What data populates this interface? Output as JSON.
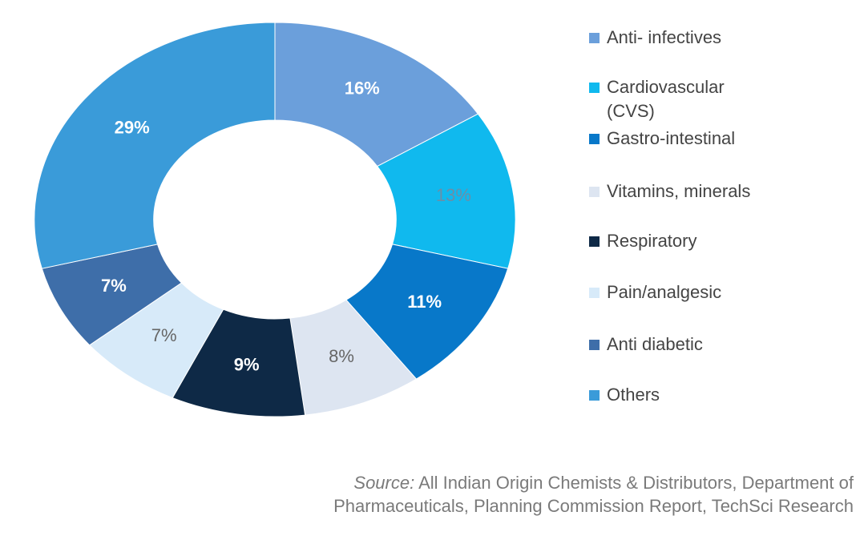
{
  "chart_data": {
    "type": "donut",
    "categories": [
      "Anti- infectives",
      "Cardiovascular (CVS)",
      "Gastro-intestinal",
      "Vitamins, minerals",
      "Respiratory",
      "Pain/analgesic",
      "Anti diabetic",
      "Others"
    ],
    "values": [
      16,
      13,
      11,
      8,
      9,
      7,
      7,
      29
    ],
    "value_labels": [
      "16%",
      "13%",
      "11%",
      "8%",
      "9%",
      "7%",
      "7%",
      "29%"
    ],
    "colors": [
      "#6b9fdb",
      "#10b9ee",
      "#0878c9",
      "#dde5f1",
      "#0e2946",
      "#d7eaf9",
      "#3e6ea9",
      "#3a9bd9"
    ],
    "legend": "right",
    "source": {
      "label": "Source:",
      "text": "All Indian Origin Chemists & Distributors, Department of Pharmaceuticals, Planning Commission Report, TechSci Research"
    }
  }
}
